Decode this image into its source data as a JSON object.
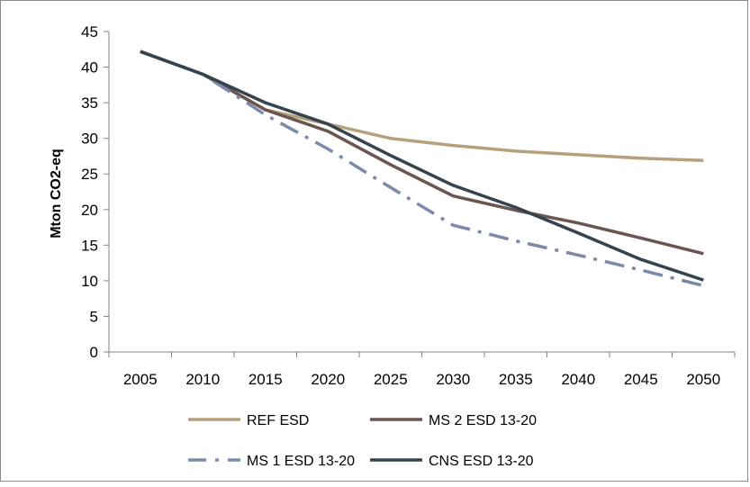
{
  "chart_data": {
    "type": "line",
    "title": "",
    "xlabel": "",
    "ylabel": "Mton CO2-eq",
    "x": [
      2005,
      2010,
      2015,
      2020,
      2025,
      2030,
      2035,
      2040,
      2045,
      2050
    ],
    "ylim": [
      0,
      45
    ],
    "yticks": [
      0,
      5,
      10,
      15,
      20,
      25,
      30,
      35,
      40,
      45
    ],
    "grid": false,
    "legend_position": "bottom",
    "series": [
      {
        "name": "REF ESD",
        "color": "#b5a17b",
        "dash": "solid",
        "values": [
          42.2,
          39.0,
          34.0,
          32.0,
          30.0,
          29.0,
          28.2,
          27.7,
          27.2,
          26.9
        ]
      },
      {
        "name": "MS 2 ESD 13-20",
        "color": "#6b5550",
        "dash": "solid",
        "values": [
          42.2,
          39.0,
          34.0,
          31.0,
          26.3,
          21.9,
          19.9,
          18.1,
          16.0,
          13.8
        ]
      },
      {
        "name": "MS 1 ESD 13-20",
        "color": "#7b8aab",
        "dash": "dashdot",
        "values": [
          42.2,
          39.0,
          33.3,
          28.5,
          23.1,
          17.8,
          15.6,
          13.6,
          11.5,
          9.3
        ]
      },
      {
        "name": "CNS ESD 13-20",
        "color": "#35434f",
        "dash": "solid",
        "values": [
          42.2,
          39.0,
          35.0,
          32.0,
          27.6,
          23.4,
          20.3,
          16.7,
          13.0,
          10.1
        ]
      }
    ]
  }
}
